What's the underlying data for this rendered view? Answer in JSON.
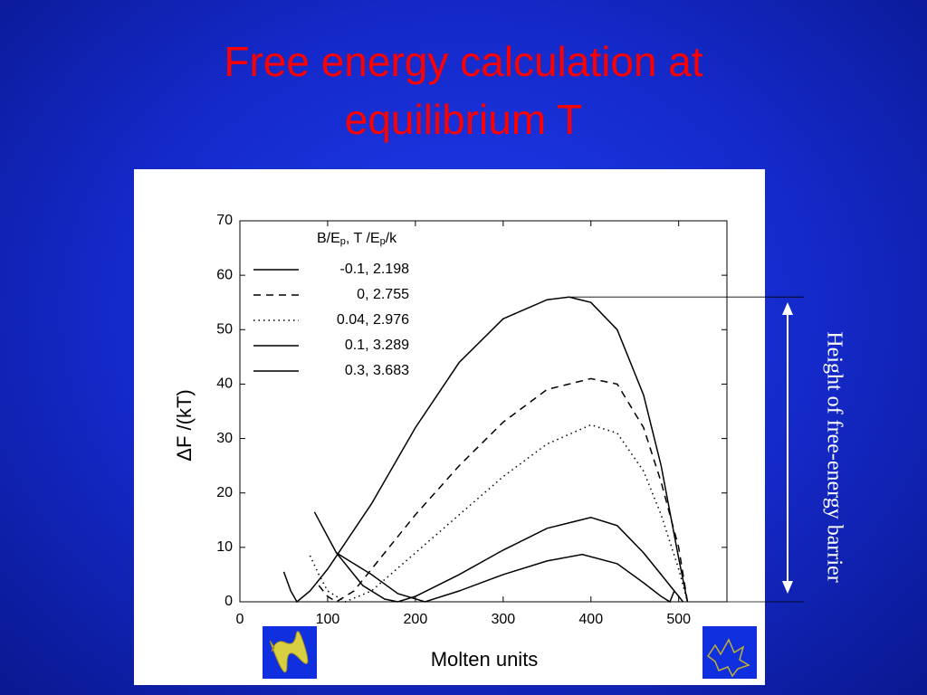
{
  "chart_data": {
    "type": "line",
    "title": "Free energy calculation at equilibrium T",
    "xlabel": "Molten units",
    "ylabel": "ΔF /(kT)",
    "annotation": "Height of free-energy barrier",
    "legend_title": [
      "B/E",
      "p",
      ", T /E",
      "p",
      "/k"
    ],
    "xlim": [
      0,
      555
    ],
    "ylim": [
      0,
      70
    ],
    "xticks": [
      0,
      100,
      200,
      300,
      400,
      500
    ],
    "yticks": [
      0,
      10,
      20,
      30,
      40,
      50,
      60,
      70
    ],
    "series": [
      {
        "name": "-0.1, 2.198",
        "color": "#000000",
        "dash": "solid",
        "x": [
          50,
          58,
          65,
          80,
          100,
          150,
          200,
          250,
          300,
          350,
          375,
          400,
          430,
          460,
          480,
          500,
          510
        ],
        "values": [
          5.5,
          2,
          0,
          2,
          6,
          18,
          32,
          44,
          52,
          55.5,
          56,
          55,
          50,
          38,
          25,
          8,
          0
        ]
      },
      {
        "name": "0, 2.755",
        "color": "#000000",
        "dash": "dashed",
        "x": [
          90,
          100,
          110,
          130,
          150,
          200,
          250,
          300,
          350,
          400,
          430,
          460,
          480,
          500,
          510
        ],
        "values": [
          3,
          1,
          0,
          2,
          6,
          16,
          25,
          33,
          39,
          41,
          40,
          32,
          22,
          10,
          0
        ]
      },
      {
        "name": "0.04, 2.976",
        "color": "#000000",
        "dash": "dotted",
        "x": [
          80,
          90,
          100,
          120,
          150,
          200,
          250,
          300,
          350,
          400,
          430,
          460,
          480,
          500,
          510
        ],
        "values": [
          8.5,
          5,
          2,
          0,
          2,
          9,
          16,
          23,
          29,
          32.5,
          31,
          24,
          16,
          6,
          0
        ]
      },
      {
        "name": "0.1, 3.289",
        "color": "#000000",
        "dash": "solid",
        "x": [
          85,
          110,
          140,
          165,
          180,
          200,
          250,
          300,
          350,
          400,
          430,
          460,
          480,
          500,
          505
        ],
        "values": [
          16.5,
          9,
          3,
          0.5,
          0,
          1,
          5,
          9.5,
          13.5,
          15.5,
          14,
          9,
          5,
          1,
          0
        ]
      },
      {
        "name": "0.3, 3.683",
        "color": "#000000",
        "dash": "solid",
        "x": [
          110,
          150,
          180,
          211,
          250,
          300,
          350,
          390,
          430,
          460,
          480,
          490,
          495
        ],
        "values": [
          9,
          5,
          1.5,
          0,
          2,
          5,
          7.5,
          8.7,
          7,
          3.5,
          1,
          0,
          2
        ]
      }
    ]
  }
}
